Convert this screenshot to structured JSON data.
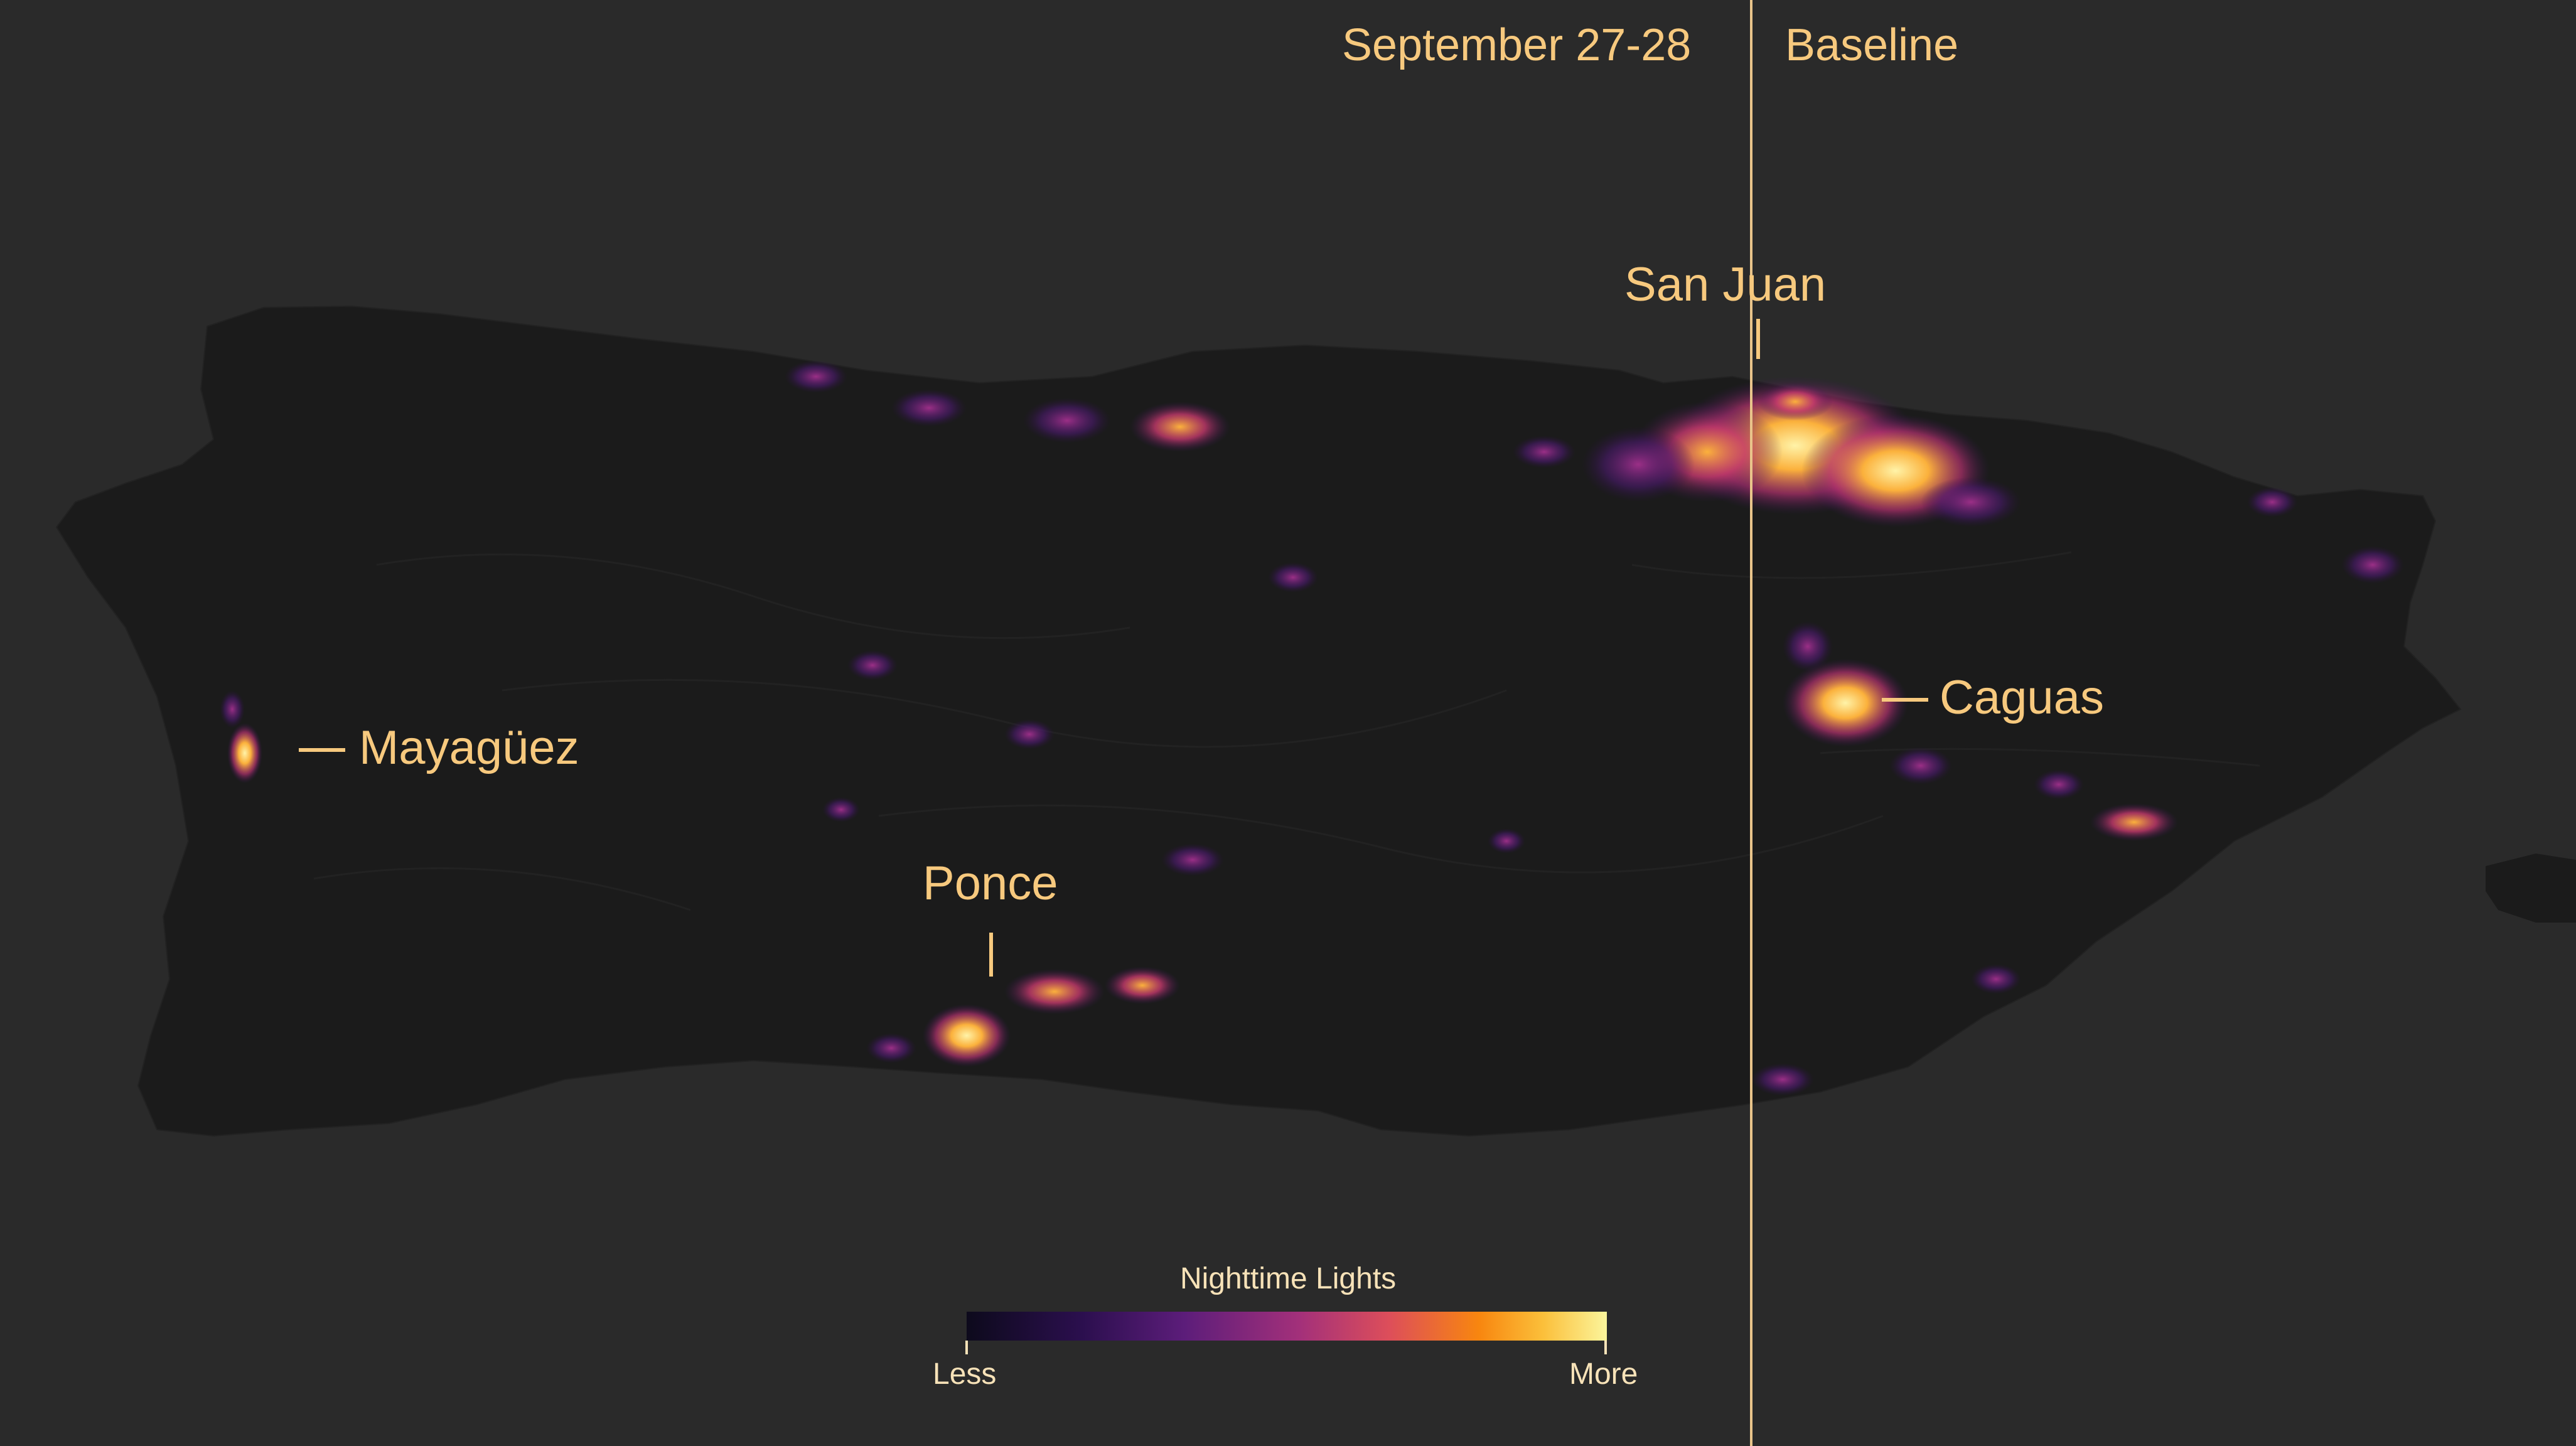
{
  "panels": {
    "left_label": "September 27-28",
    "right_label": "Baseline"
  },
  "cities": {
    "san_juan": "San Juan",
    "caguas": "Caguas",
    "mayaguez": "Mayagüez",
    "ponce": "Ponce"
  },
  "legend": {
    "title": "Nighttime Lights",
    "less_label": "Less",
    "more_label": "More"
  },
  "colors": {
    "background": "#2a2a2a",
    "land": "#1a1a1a",
    "label": "#f7c97e",
    "divider": "#e9c48a"
  }
}
